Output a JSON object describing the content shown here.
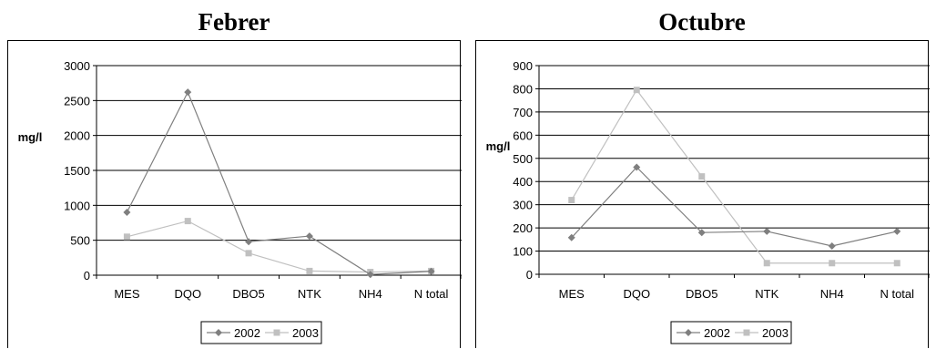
{
  "chart_data": [
    {
      "type": "line",
      "title": "Febrer",
      "ylabel": "mg/l",
      "xlabel": "",
      "categories": [
        "MES",
        "DQO",
        "DBO5",
        "NTK",
        "NH4",
        "N total"
      ],
      "ylim": [
        0,
        3000
      ],
      "yticks": [
        0,
        500,
        1000,
        1500,
        2000,
        2500,
        3000
      ],
      "grid": true,
      "legend": "bottom",
      "series": [
        {
          "name": "2002",
          "values": [
            900,
            2620,
            480,
            560,
            10,
            55
          ],
          "color": "#7f7f7f",
          "marker": "diamond"
        },
        {
          "name": "2003",
          "values": [
            550,
            775,
            315,
            60,
            45,
            60
          ],
          "color": "#c0c0c0",
          "marker": "square"
        }
      ]
    },
    {
      "type": "line",
      "title": "Octubre",
      "ylabel": "mg/l",
      "xlabel": "",
      "categories": [
        "MES",
        "DQO",
        "DBO5",
        "NTK",
        "NH4",
        "N total"
      ],
      "ylim": [
        0,
        900
      ],
      "yticks": [
        0,
        100,
        200,
        300,
        400,
        500,
        600,
        700,
        800,
        900
      ],
      "grid": true,
      "legend": "bottom",
      "series": [
        {
          "name": "2002",
          "values": [
            158,
            462,
            180,
            185,
            122,
            185
          ],
          "color": "#7f7f7f",
          "marker": "diamond"
        },
        {
          "name": "2003",
          "values": [
            320,
            795,
            422,
            48,
            48,
            48
          ],
          "color": "#c0c0c0",
          "marker": "square"
        }
      ]
    }
  ]
}
